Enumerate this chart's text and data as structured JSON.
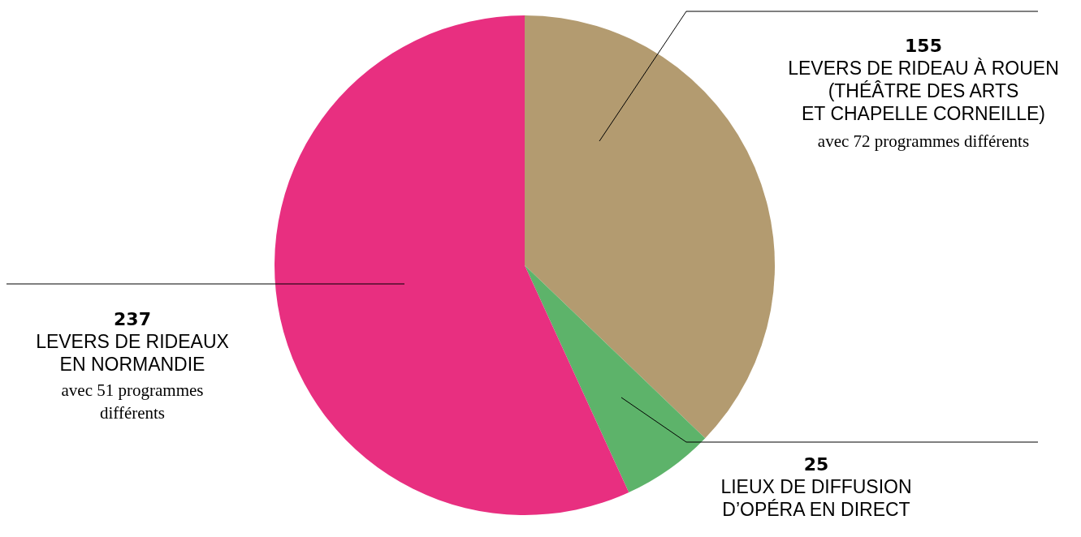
{
  "chart_data": {
    "type": "pie",
    "categories": [
      "LEVERS DE RIDEAU À ROUEN\n(THÉÂTRE DES ARTS\nET CHAPELLE CORNEILLE)",
      "LIEUX DE DIFFUSION\nD’OPÉRA EN DIRECT",
      "LEVERS DE RIDEAUX\nEN NORMANDIE"
    ],
    "values": [
      155,
      25,
      237
    ],
    "colors": [
      "#b39b70",
      "#5db36a",
      "#e82f80"
    ],
    "data_labels": true,
    "annotations": [
      "avec 72 programmes différents",
      "avec 51 programmes\ndifférents"
    ]
  }
}
